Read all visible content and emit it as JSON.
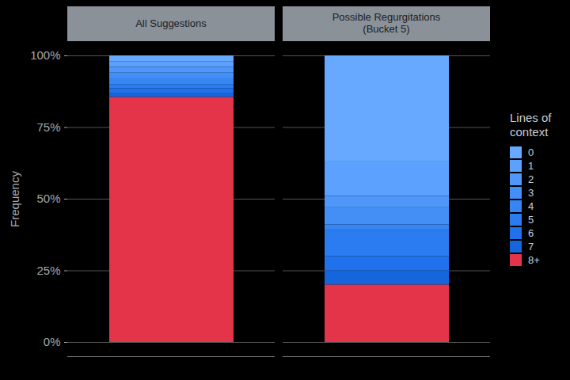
{
  "chart_data": {
    "type": "bar",
    "stacked": true,
    "categories": [
      "All Suggestions",
      "Possible Regurgitations\n(Bucket 5)"
    ],
    "ylabel": "Frequency",
    "legend_title": "Lines of context",
    "legend": "right",
    "grid": true,
    "ylim": [
      0,
      100
    ],
    "yticks": [
      {
        "value": 0,
        "label": "0%"
      },
      {
        "value": 25,
        "label": "25%"
      },
      {
        "value": 50,
        "label": "50%"
      },
      {
        "value": 75,
        "label": "75%"
      },
      {
        "value": 100,
        "label": "100%"
      }
    ],
    "series": [
      {
        "name": "0",
        "color": "#66a9ff",
        "values": [
          2,
          37
        ]
      },
      {
        "name": "1",
        "color": "#5ba1fd",
        "values": [
          2,
          12
        ]
      },
      {
        "name": "2",
        "color": "#4f98fa",
        "values": [
          2,
          4
        ]
      },
      {
        "name": "3",
        "color": "#438ff6",
        "values": [
          2,
          6
        ]
      },
      {
        "name": "4",
        "color": "#3786f3",
        "values": [
          2,
          2
        ]
      },
      {
        "name": "5",
        "color": "#2a7cf0",
        "values": [
          1.5,
          9
        ]
      },
      {
        "name": "6",
        "color": "#1f72ec",
        "values": [
          1.5,
          5
        ]
      },
      {
        "name": "7",
        "color": "#1565dc",
        "values": [
          1.5,
          5
        ]
      },
      {
        "name": "8+",
        "color": "#e3344a",
        "values": [
          85.5,
          20
        ]
      }
    ]
  }
}
